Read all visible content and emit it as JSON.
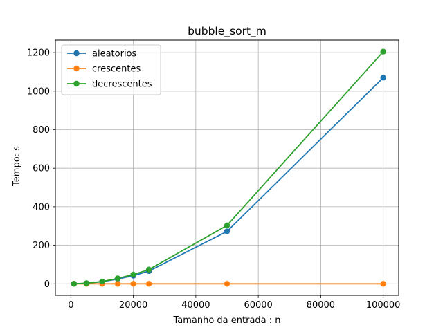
{
  "chart_data": {
    "type": "line",
    "title": "bubble_sort_m",
    "xlabel": "Tamanho da entrada : n",
    "ylabel": "Tempo: s",
    "xlim": [
      -4950,
      104950
    ],
    "ylim": [
      -60,
      1265
    ],
    "xticks": [
      0,
      20000,
      40000,
      60000,
      80000,
      100000
    ],
    "xtick_labels": [
      "0",
      "20000",
      "40000",
      "60000",
      "80000",
      "100000"
    ],
    "yticks": [
      0,
      200,
      400,
      600,
      800,
      1000,
      1200
    ],
    "ytick_labels": [
      "0",
      "200",
      "400",
      "600",
      "800",
      "1000",
      "1200"
    ],
    "grid": true,
    "legend_position": "top-left",
    "x": [
      1000,
      5000,
      10000,
      15000,
      20000,
      25000,
      50000,
      100000
    ],
    "series": [
      {
        "name": "aleatorios",
        "color": "#1f77b4",
        "values": [
          0.1,
          2.7,
          11,
          25,
          42,
          66,
          272,
          1070
        ]
      },
      {
        "name": "crescentes",
        "color": "#ff7f0e",
        "values": [
          0,
          0,
          0,
          0,
          0,
          0,
          0,
          0
        ]
      },
      {
        "name": "decrescentes",
        "color": "#2ca02c",
        "values": [
          0.1,
          3,
          12,
          28,
          48,
          74,
          303,
          1205
        ]
      }
    ]
  }
}
